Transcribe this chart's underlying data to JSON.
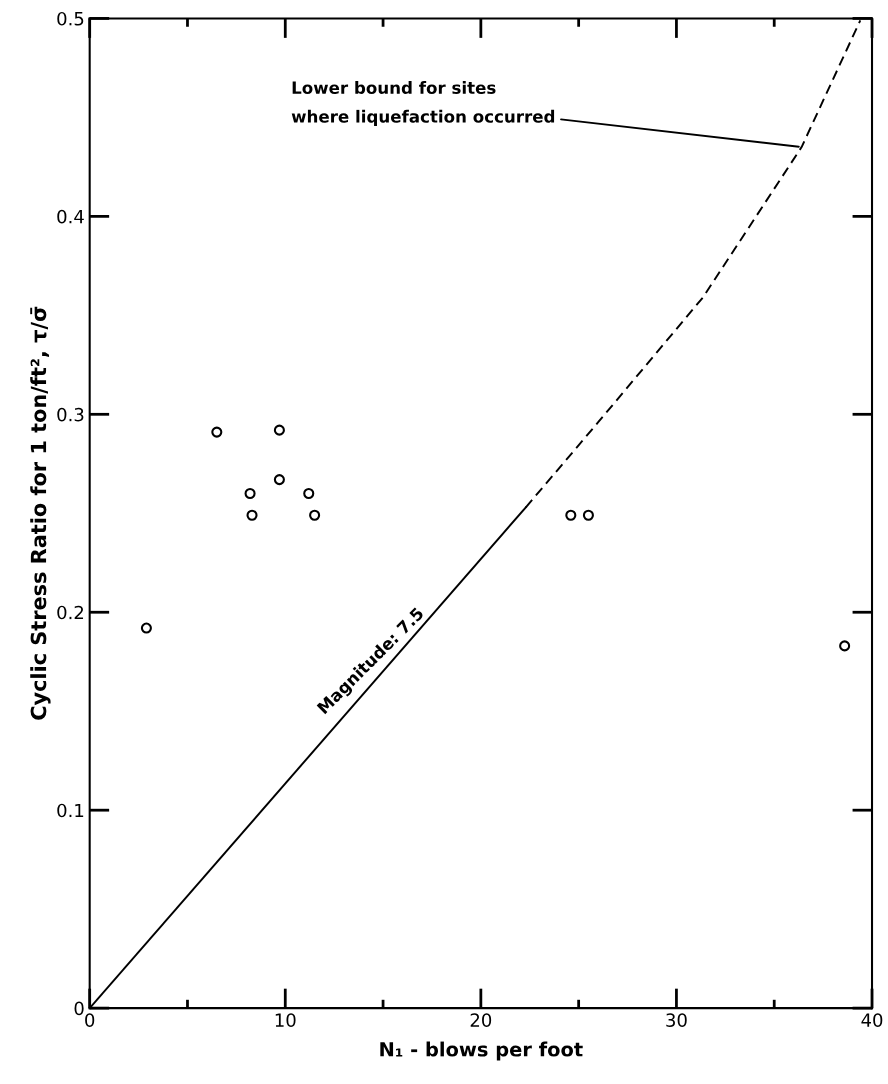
{
  "chart_data": {
    "type": "scatter",
    "xlabel": "N₁ - blows per foot",
    "ylabel": "Cyclic Stress Ratio for 1 ton/ft², τ/σ̄",
    "xlim": [
      0,
      40
    ],
    "ylim": [
      0,
      0.5
    ],
    "xticks": [
      0,
      {
        "value": 5,
        "label": null
      },
      10,
      {
        "value": 15,
        "label": null
      },
      20,
      {
        "value": 25,
        "label": null
      },
      30,
      {
        "value": 35,
        "label": null
      },
      40
    ],
    "yticks": [
      0,
      0.1,
      0.2,
      0.3,
      0.4,
      0.5
    ],
    "grid": false,
    "legend": false,
    "series": [
      {
        "color": "#000000",
        "marker": "circle",
        "x": [
          2.9,
          6.5,
          8.2,
          8.3,
          9.7,
          9.7,
          11.2,
          11.5,
          24.6,
          25.5,
          38.6
        ],
        "values": [
          0.192,
          0.291,
          0.26,
          0.249,
          0.292,
          0.267,
          0.26,
          0.249,
          0.249,
          0.249,
          0.183
        ]
      },
      {
        "type": "line",
        "color": "#000000",
        "line_style": "solid",
        "x": [
          0,
          22.3
        ],
        "values": [
          0,
          0.253
        ]
      },
      {
        "type": "line",
        "color": "#000000",
        "line_style": "dashed",
        "x": [
          22.3,
          26,
          31.35,
          36.4,
          39.4
        ],
        "values": [
          0.253,
          0.296,
          0.359,
          0.435,
          0.499
        ]
      }
    ],
    "annotations": [
      {
        "text": "Lower bound for sites\nwhere liquefaction occurred",
        "x": 36.4,
        "y": 0.435
      },
      "Magnitude: 7.5"
    ]
  }
}
